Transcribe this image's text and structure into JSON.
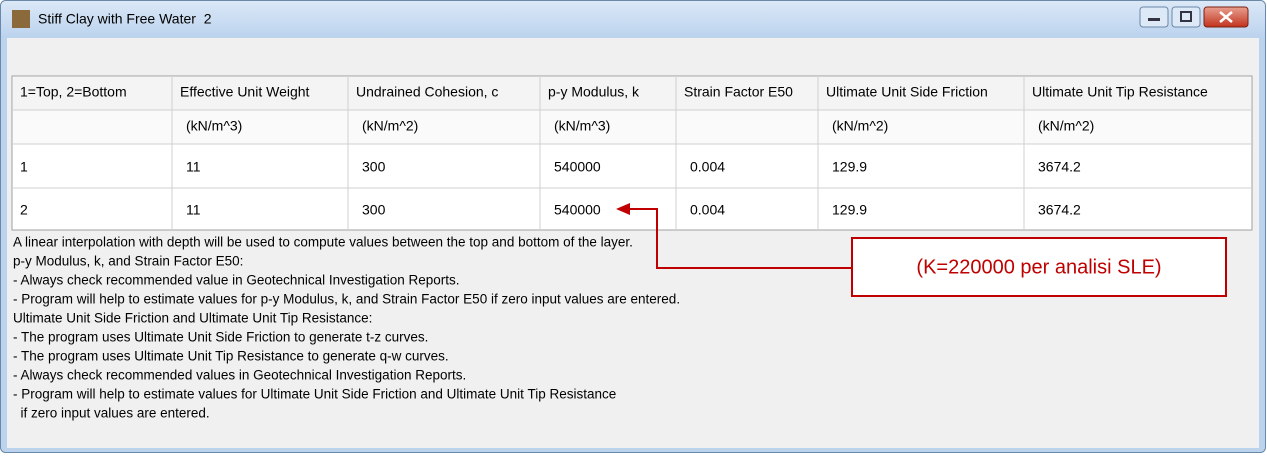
{
  "window": {
    "title": "Stiff Clay with Free Water  2"
  },
  "table": {
    "headers": [
      "1=Top, 2=Bottom",
      "Effective Unit Weight",
      "Undrained Cohesion, c",
      "p-y Modulus, k",
      "Strain Factor E50",
      "Ultimate Unit Side Friction",
      "Ultimate Unit Tip Resistance"
    ],
    "units": [
      null,
      "(kN/m^3)",
      "(kN/m^2)",
      "(kN/m^3)",
      null,
      "(kN/m^2)",
      "(kN/m^2)"
    ],
    "rows": [
      [
        1,
        11,
        300,
        540000,
        0.004,
        129.9,
        3674.2
      ],
      [
        2,
        11,
        300,
        540000,
        0.004,
        129.9,
        3674.2
      ]
    ]
  },
  "notes": [
    "A linear interpolation with depth will be used to compute values between the top and bottom of the layer.",
    "p-y Modulus, k, and Strain Factor E50:",
    "- Always check recommended value in Geotechnical Investigation Reports.",
    "- Program will help to estimate values for p-y Modulus, k, and Strain Factor E50 if zero input values are entered.",
    "Ultimate Unit Side Friction and Ultimate Unit Tip Resistance:",
    "- The program uses Ultimate Unit Side Friction to generate t-z curves.",
    "- The program uses Ultimate Unit Tip Resistance to generate q-w curves.",
    "- Always check recommended values in Geotechnical Investigation Reports.",
    "- Program will help to estimate values for Ultimate Unit Side Friction and Ultimate Unit Tip Resistance",
    "  if zero input values are entered."
  ],
  "annotation": {
    "text": "(K=220000 per analisi SLE)"
  }
}
